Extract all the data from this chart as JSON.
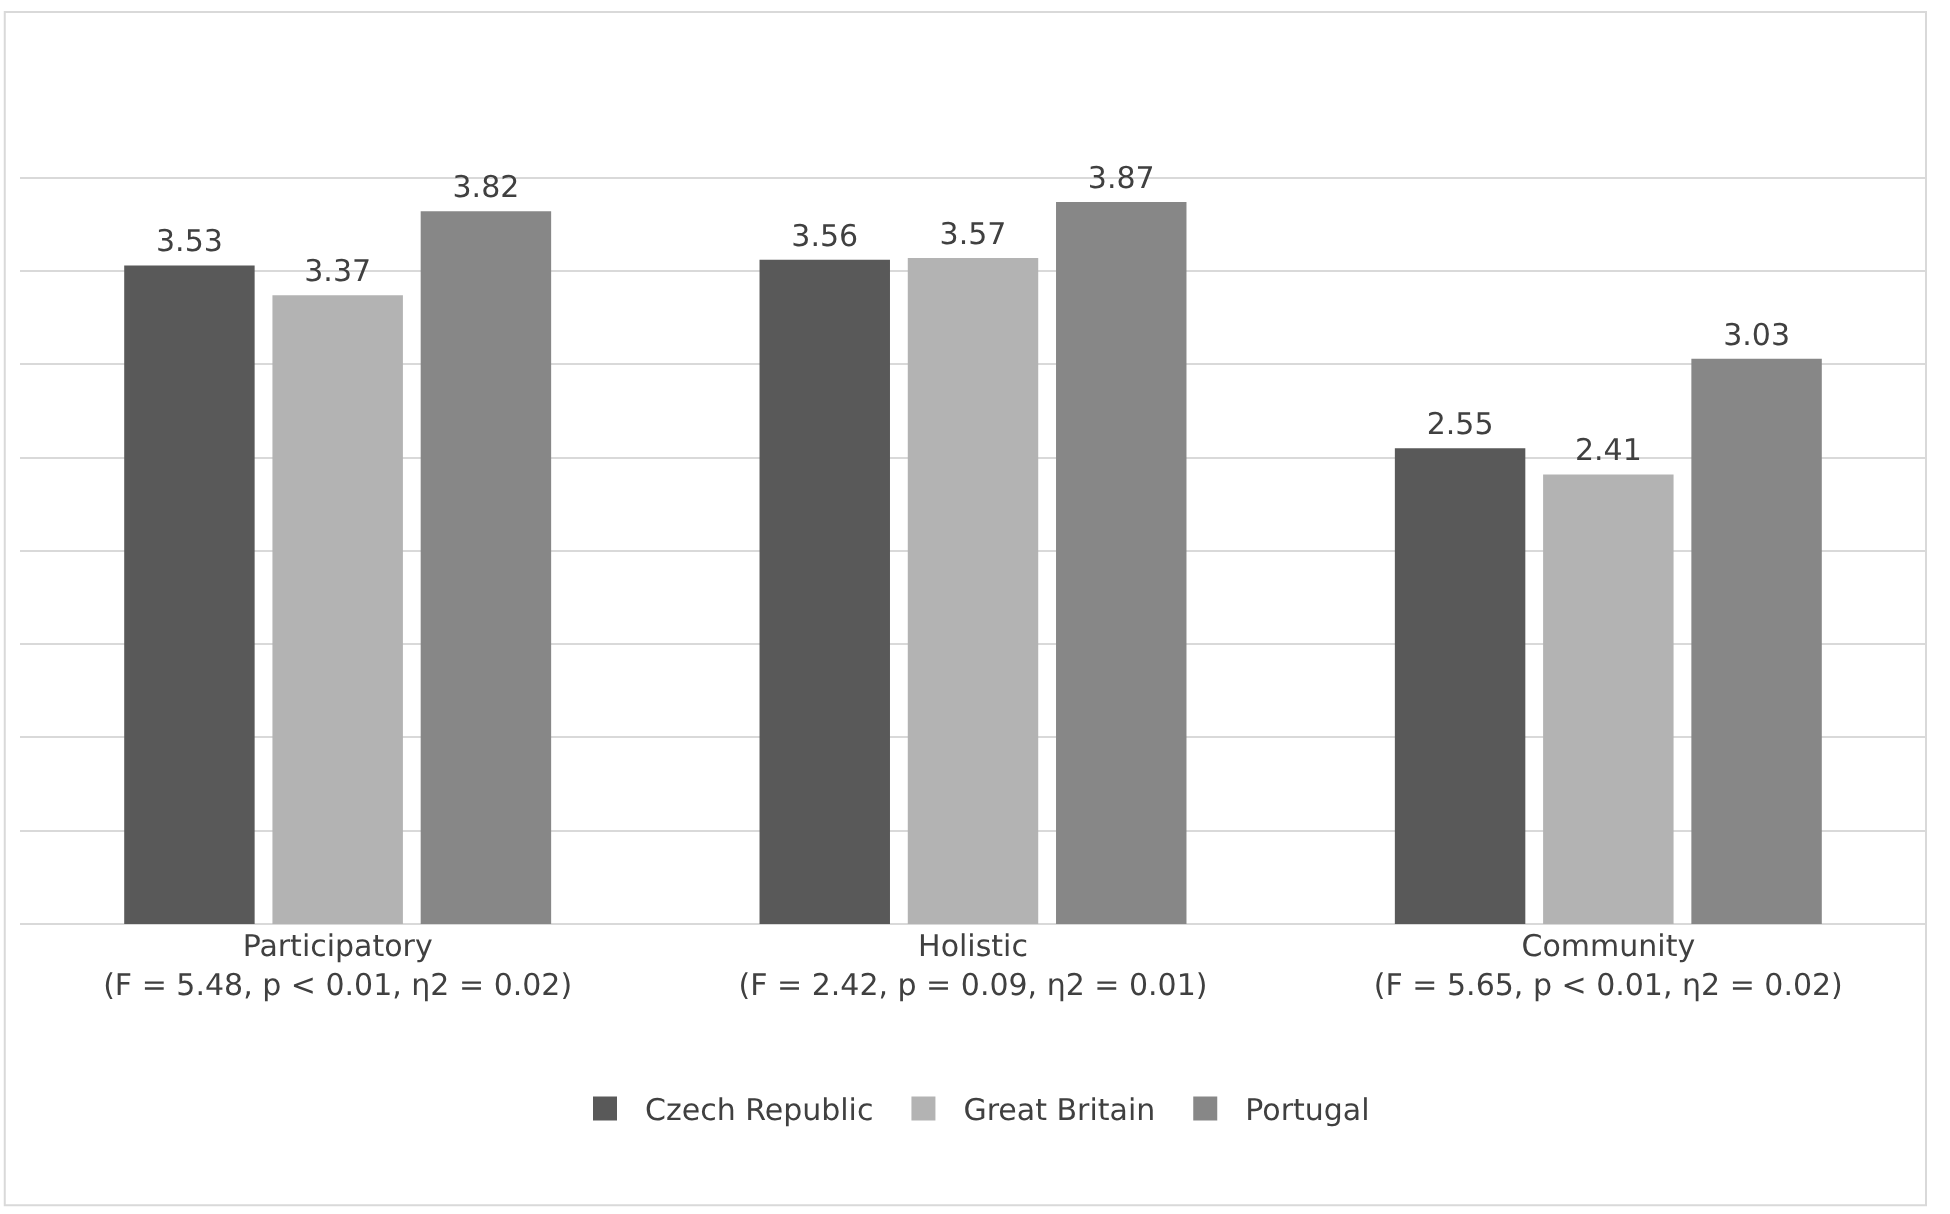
{
  "chart_data": {
    "type": "bar",
    "categories": [
      "Participatory\n(F = 5.48, p < 0.01, η2 = 0.02)",
      "Holistic\n(F = 2.42, p = 0.09, η2 = 0.01)",
      "Community\n(F = 5.65, p < 0.01, η2 = 0.02)"
    ],
    "series": [
      {
        "name": "Czech Republic",
        "color": "#595959",
        "values": [
          3.53,
          3.56,
          2.55
        ]
      },
      {
        "name": "Great Britain",
        "color": "#b3b3b3",
        "values": [
          3.37,
          3.57,
          2.41
        ]
      },
      {
        "name": "Portugal",
        "color": "#878787",
        "values": [
          3.82,
          3.87,
          3.03
        ]
      }
    ],
    "tick_labels": "x",
    "grid": "y",
    "data_labels": true,
    "legend": "bottom"
  }
}
